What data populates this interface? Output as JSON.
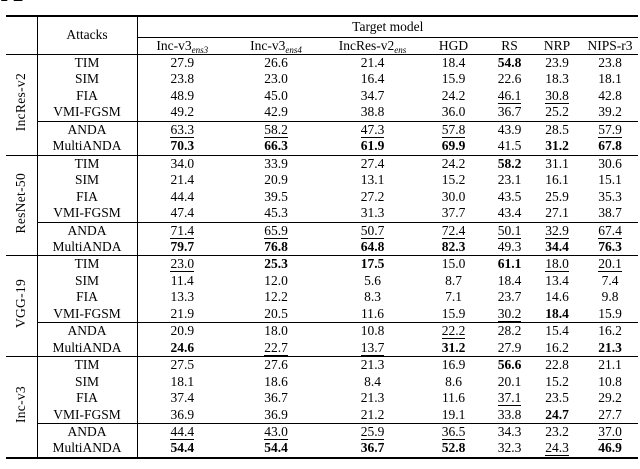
{
  "page": {
    "partial_heading": "A",
    "colors": {
      "text": "#000000",
      "background": "#ffffff",
      "rules": "#000000"
    }
  },
  "table": {
    "header": {
      "attacks_label": "Attacks",
      "target_model_label": "Target model",
      "columns": [
        {
          "base": "Inc-v3",
          "sub": "ens3"
        },
        {
          "base": "Inc-v3",
          "sub": "ens4"
        },
        {
          "base": "IncRes-v2",
          "sub": "ens"
        },
        {
          "base": "HGD",
          "sub": ""
        },
        {
          "base": "RS",
          "sub": ""
        },
        {
          "base": "NRP",
          "sub": ""
        },
        {
          "base": "NIPS-r3",
          "sub": ""
        }
      ]
    },
    "groups": [
      {
        "label": "IncRes-v2",
        "rows": [
          {
            "attack": "TIM",
            "midrule": false,
            "values": [
              "27.9",
              "26.6",
              "21.4",
              "18.4",
              "54.8",
              "23.9",
              "23.8"
            ],
            "styles": [
              "",
              "",
              "",
              "",
              "b",
              "",
              ""
            ]
          },
          {
            "attack": "SIM",
            "midrule": false,
            "values": [
              "23.8",
              "23.0",
              "16.4",
              "15.9",
              "22.6",
              "18.3",
              "18.1"
            ],
            "styles": [
              "",
              "",
              "",
              "",
              "",
              "",
              ""
            ]
          },
          {
            "attack": "FIA",
            "midrule": false,
            "values": [
              "48.9",
              "45.0",
              "34.7",
              "24.2",
              "46.1",
              "30.8",
              "42.8"
            ],
            "styles": [
              "",
              "",
              "",
              "",
              "u",
              "u",
              ""
            ]
          },
          {
            "attack": "VMI-FGSM",
            "midrule": false,
            "values": [
              "49.2",
              "42.9",
              "38.8",
              "36.0",
              "36.7",
              "25.2",
              "39.2"
            ],
            "styles": [
              "",
              "",
              "",
              "",
              "",
              "",
              ""
            ]
          },
          {
            "attack": "ANDA",
            "midrule": true,
            "values": [
              "63.3",
              "58.2",
              "47.3",
              "57.8",
              "43.9",
              "28.5",
              "57.9"
            ],
            "styles": [
              "u",
              "u",
              "u",
              "u",
              "",
              "",
              "u"
            ]
          },
          {
            "attack": "MultiANDA",
            "midrule": false,
            "values": [
              "70.3",
              "66.3",
              "61.9",
              "69.9",
              "41.5",
              "31.2",
              "67.8"
            ],
            "styles": [
              "b",
              "b",
              "b",
              "b",
              "",
              "b",
              "b"
            ]
          }
        ]
      },
      {
        "label": "ResNet-50",
        "rows": [
          {
            "attack": "TIM",
            "midrule": false,
            "values": [
              "34.0",
              "33.9",
              "27.4",
              "24.2",
              "58.2",
              "31.1",
              "30.6"
            ],
            "styles": [
              "",
              "",
              "",
              "",
              "b",
              "",
              ""
            ]
          },
          {
            "attack": "SIM",
            "midrule": false,
            "values": [
              "21.4",
              "20.9",
              "13.1",
              "15.2",
              "23.1",
              "16.1",
              "15.1"
            ],
            "styles": [
              "",
              "",
              "",
              "",
              "",
              "",
              ""
            ]
          },
          {
            "attack": "FIA",
            "midrule": false,
            "values": [
              "44.4",
              "39.5",
              "27.2",
              "30.0",
              "43.5",
              "25.9",
              "35.3"
            ],
            "styles": [
              "",
              "",
              "",
              "",
              "",
              "",
              ""
            ]
          },
          {
            "attack": "VMI-FGSM",
            "midrule": false,
            "values": [
              "47.4",
              "45.3",
              "31.3",
              "37.7",
              "43.4",
              "27.1",
              "38.7"
            ],
            "styles": [
              "",
              "",
              "",
              "",
              "",
              "",
              ""
            ]
          },
          {
            "attack": "ANDA",
            "midrule": true,
            "values": [
              "71.4",
              "65.9",
              "50.7",
              "72.4",
              "50.1",
              "32.9",
              "67.4"
            ],
            "styles": [
              "u",
              "u",
              "u",
              "u",
              "u",
              "u",
              "u"
            ]
          },
          {
            "attack": "MultiANDA",
            "midrule": false,
            "values": [
              "79.7",
              "76.8",
              "64.8",
              "82.3",
              "49.3",
              "34.4",
              "76.3"
            ],
            "styles": [
              "b",
              "b",
              "b",
              "b",
              "",
              "b",
              "b"
            ]
          }
        ]
      },
      {
        "label": "VGG-19",
        "rows": [
          {
            "attack": "TIM",
            "midrule": false,
            "values": [
              "23.0",
              "25.3",
              "17.5",
              "15.0",
              "61.1",
              "18.0",
              "20.1"
            ],
            "styles": [
              "u",
              "b",
              "b",
              "",
              "b",
              "u",
              "u"
            ]
          },
          {
            "attack": "SIM",
            "midrule": false,
            "values": [
              "11.4",
              "12.0",
              "5.6",
              "8.7",
              "18.4",
              "13.4",
              "7.4"
            ],
            "styles": [
              "",
              "",
              "",
              "",
              "",
              "",
              ""
            ]
          },
          {
            "attack": "FIA",
            "midrule": false,
            "values": [
              "13.3",
              "12.2",
              "8.3",
              "7.1",
              "23.7",
              "14.6",
              "9.8"
            ],
            "styles": [
              "",
              "",
              "",
              "",
              "",
              "",
              ""
            ]
          },
          {
            "attack": "VMI-FGSM",
            "midrule": false,
            "values": [
              "21.9",
              "20.5",
              "11.6",
              "15.9",
              "30.2",
              "18.4",
              "15.9"
            ],
            "styles": [
              "",
              "",
              "",
              "",
              "u",
              "b",
              ""
            ]
          },
          {
            "attack": "ANDA",
            "midrule": true,
            "values": [
              "20.9",
              "18.0",
              "10.8",
              "22.2",
              "28.2",
              "15.4",
              "16.2"
            ],
            "styles": [
              "",
              "",
              "",
              "u",
              "",
              "",
              ""
            ]
          },
          {
            "attack": "MultiANDA",
            "midrule": false,
            "values": [
              "24.6",
              "22.7",
              "13.7",
              "31.2",
              "27.9",
              "16.2",
              "21.3"
            ],
            "styles": [
              "b",
              "u",
              "u",
              "b",
              "",
              "",
              "b"
            ]
          }
        ]
      },
      {
        "label": "Inc-v3",
        "rows": [
          {
            "attack": "TIM",
            "midrule": false,
            "values": [
              "27.5",
              "27.6",
              "21.3",
              "16.9",
              "56.6",
              "22.8",
              "21.1"
            ],
            "styles": [
              "",
              "",
              "",
              "",
              "b",
              "",
              ""
            ]
          },
          {
            "attack": "SIM",
            "midrule": false,
            "values": [
              "18.1",
              "18.6",
              "8.4",
              "8.6",
              "20.1",
              "15.2",
              "10.8"
            ],
            "styles": [
              "",
              "",
              "",
              "",
              "",
              "",
              ""
            ]
          },
          {
            "attack": "FIA",
            "midrule": false,
            "values": [
              "37.4",
              "36.7",
              "21.3",
              "11.6",
              "37.1",
              "23.5",
              "29.2"
            ],
            "styles": [
              "",
              "",
              "",
              "",
              "u",
              "",
              ""
            ]
          },
          {
            "attack": "VMI-FGSM",
            "midrule": false,
            "values": [
              "36.9",
              "36.9",
              "21.2",
              "19.1",
              "33.8",
              "24.7",
              "27.7"
            ],
            "styles": [
              "",
              "",
              "",
              "",
              "",
              "b",
              ""
            ]
          },
          {
            "attack": "ANDA",
            "midrule": true,
            "values": [
              "44.4",
              "43.0",
              "25.9",
              "36.5",
              "34.3",
              "23.2",
              "37.0"
            ],
            "styles": [
              "u",
              "u",
              "u",
              "u",
              "",
              "",
              "u"
            ]
          },
          {
            "attack": "MultiANDA",
            "midrule": false,
            "values": [
              "54.4",
              "54.4",
              "36.7",
              "52.8",
              "32.3",
              "24.3",
              "46.9"
            ],
            "styles": [
              "b",
              "b",
              "b",
              "b",
              "",
              "u",
              "b"
            ]
          }
        ]
      }
    ]
  }
}
